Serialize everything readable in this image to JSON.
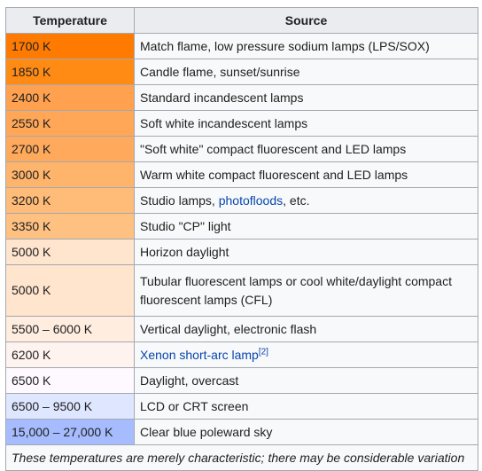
{
  "header": {
    "temperature": "Temperature",
    "source": "Source"
  },
  "rows": [
    {
      "temp": "1700 K",
      "color": "#ff7a00",
      "source": "Match flame, low pressure sodium lamps (LPS/SOX)"
    },
    {
      "temp": "1850 K",
      "color": "#ff8b14",
      "source": "Candle flame, sunset/sunrise"
    },
    {
      "temp": "2400 K",
      "color": "#ffa14f",
      "source": "Standard incandescent lamps"
    },
    {
      "temp": "2550 K",
      "color": "#ffa757",
      "source": "Soft white incandescent lamps"
    },
    {
      "temp": "2700 K",
      "color": "#ffa95c",
      "source": "\"Soft white\" compact fluorescent and LED lamps"
    },
    {
      "temp": "3000 K",
      "color": "#ffb46b",
      "source": "Warm white compact fluorescent and LED lamps"
    },
    {
      "temp": "3200 K",
      "color": "#ffbb78",
      "source_prefix": "Studio lamps, ",
      "source_link": "photofloods",
      "source_suffix": ", etc."
    },
    {
      "temp": "3350 K",
      "color": "#ffc182",
      "source": "Studio \"CP\" light"
    },
    {
      "temp": "5000 K",
      "color": "#ffe4ce",
      "source": "Horizon daylight"
    },
    {
      "temp": "5000 K",
      "color": "#ffe4ce",
      "source": "Tubular fluorescent lamps or cool white/daylight compact fluorescent lamps (CFL)"
    },
    {
      "temp": "5500 – 6000 K",
      "color": "#ffeddf",
      "source": "Vertical daylight, electronic flash"
    },
    {
      "temp": "6200 K",
      "color": "#fff3ef",
      "source_link": "Xenon short-arc lamp",
      "source_ref": "[2]"
    },
    {
      "temp": "6500 K",
      "color": "#fef9ff",
      "source": "Daylight, overcast"
    },
    {
      "temp": "6500 – 9500 K",
      "color": "#dfe6ff",
      "source": "LCD or CRT screen"
    },
    {
      "temp": "15,000 – 27,000 K",
      "color": "#a6bcff",
      "source": "Clear blue poleward sky"
    }
  ],
  "caption": "These temperatures are merely characteristic; there may be considerable variation"
}
